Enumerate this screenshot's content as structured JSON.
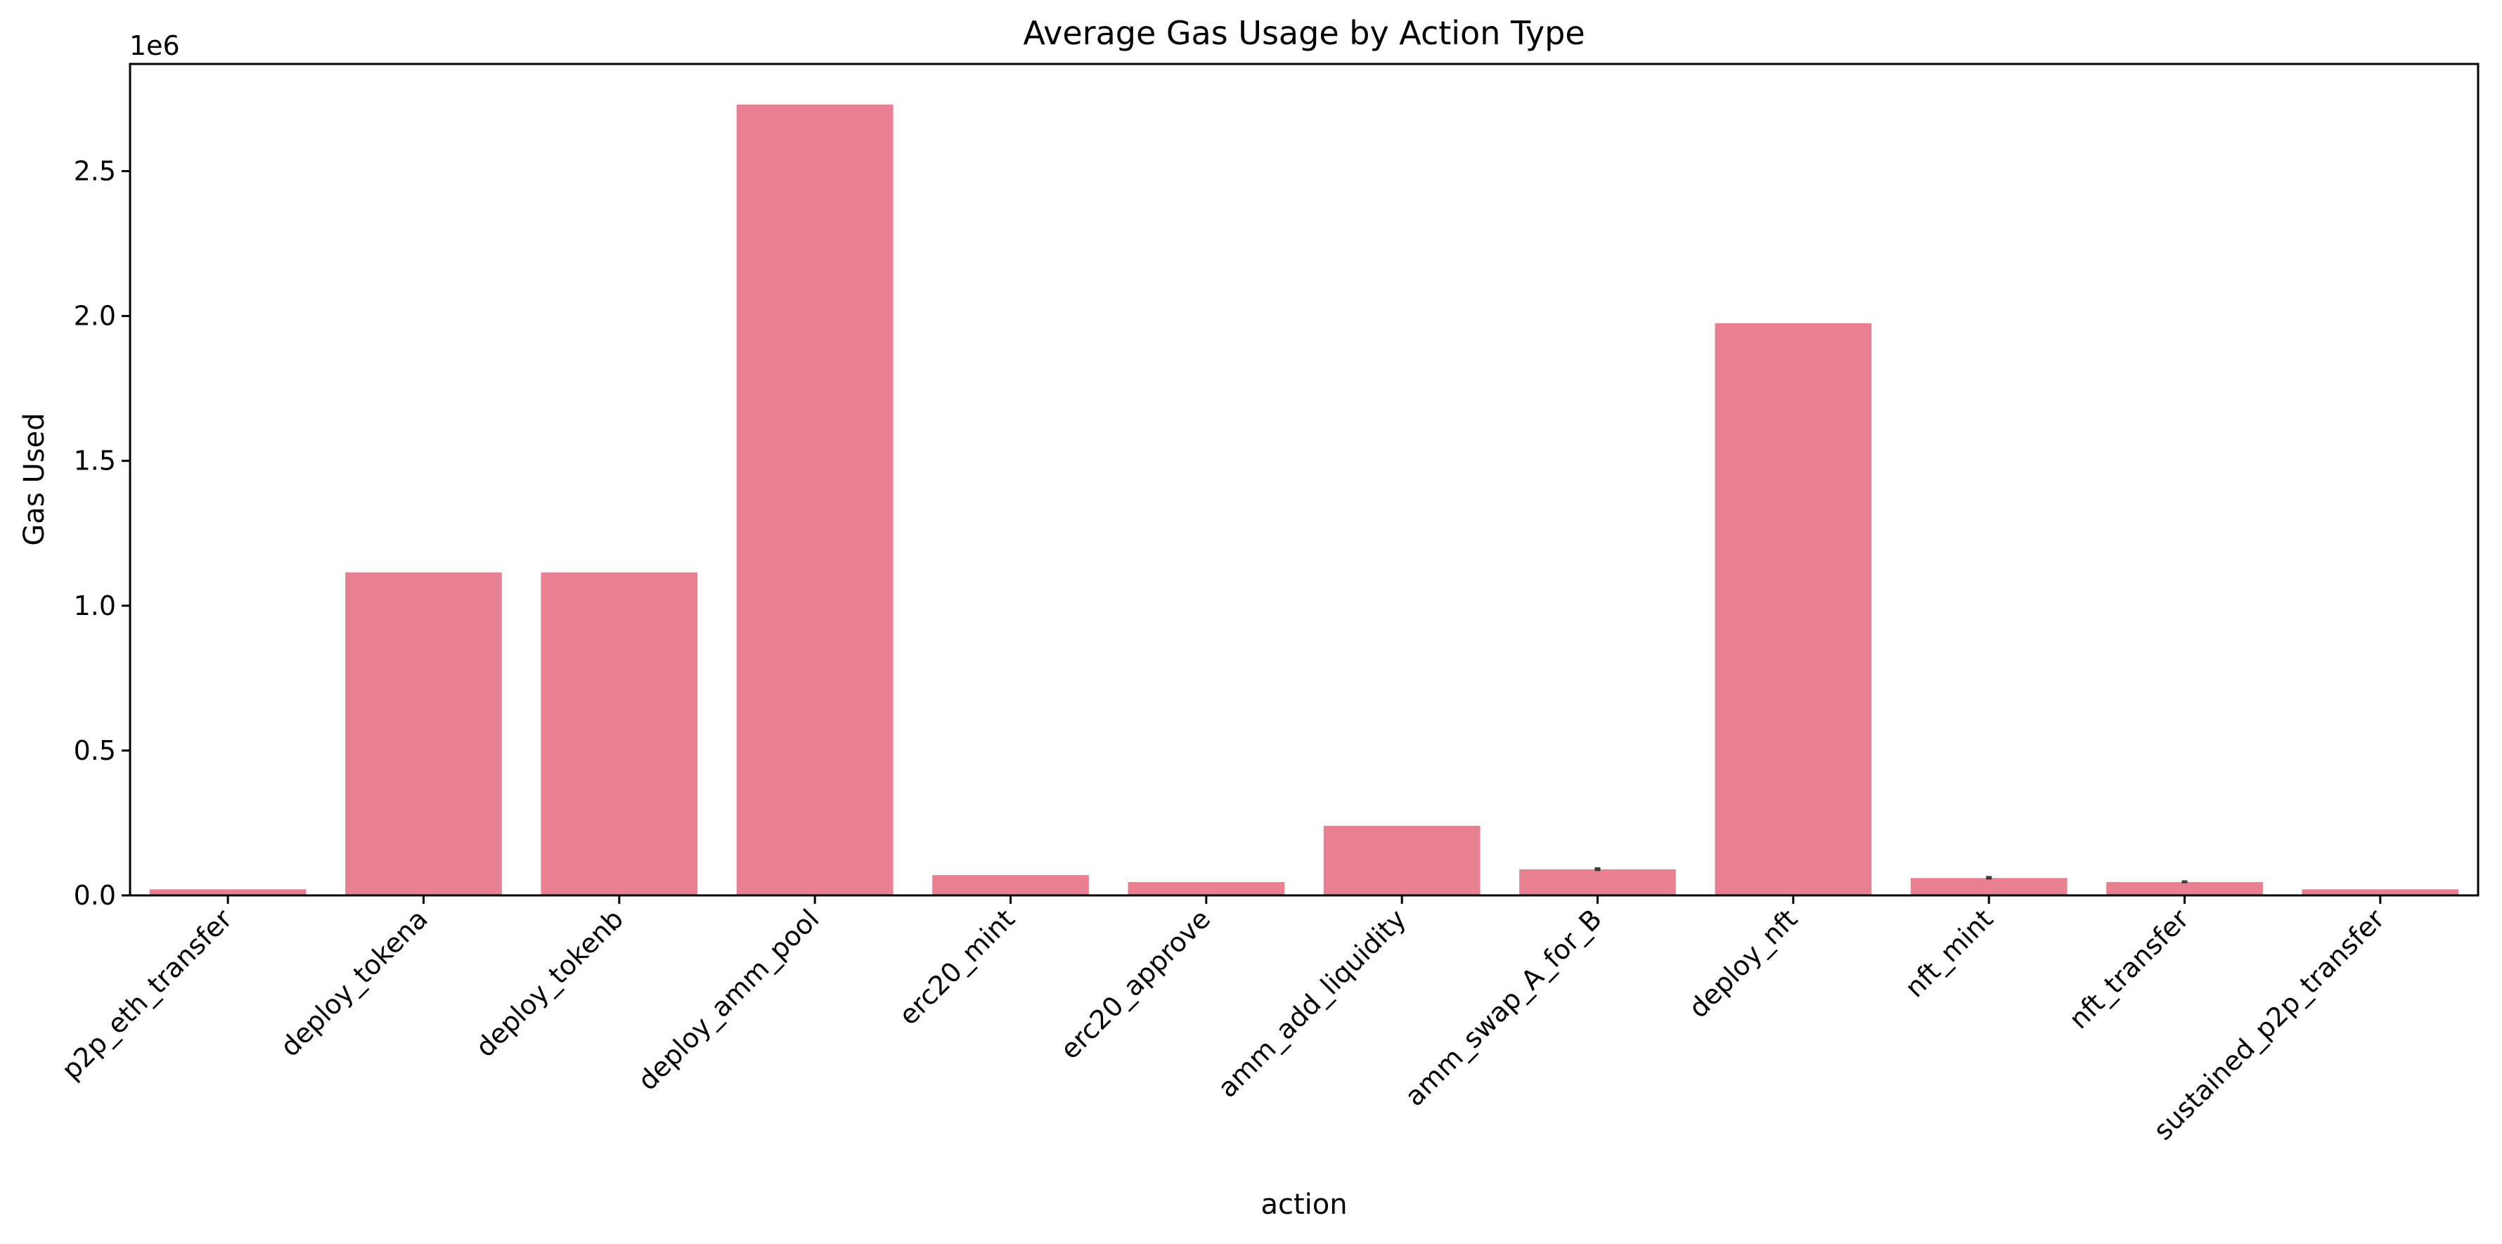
{
  "chart_data": {
    "type": "bar",
    "title": "Average Gas Usage by Action Type",
    "xlabel": "action",
    "ylabel": "Gas Used",
    "y_offset_label": "1e6",
    "ylim": [
      0,
      2870000
    ],
    "yticks": [
      0,
      500000,
      1000000,
      1500000,
      2000000,
      2500000
    ],
    "ytick_labels": [
      "0.0",
      "0.5",
      "1.0",
      "1.5",
      "2.0",
      "2.5"
    ],
    "categories": [
      "p2p_eth_transfer",
      "deploy_tokena",
      "deploy_tokenb",
      "deploy_amm_pool",
      "erc20_mint",
      "erc20_approve",
      "amm_add_liquidity",
      "amm_swap_A_for_B",
      "deploy_nft",
      "nft_mint",
      "nft_transfer",
      "sustained_p2p_transfer"
    ],
    "values": [
      21000,
      1115000,
      1115000,
      2730000,
      70000,
      46000,
      240000,
      90000,
      1975000,
      60000,
      46000,
      21000
    ],
    "error_bars": [
      {
        "category": "amm_swap_A_for_B",
        "low": 84000,
        "high": 97000
      },
      {
        "category": "nft_mint",
        "low": 55000,
        "high": 67000
      },
      {
        "category": "nft_transfer",
        "low": 42000,
        "high": 52000
      }
    ],
    "bar_color": "#e88092",
    "error_color": "#3b3b3b",
    "grid": false,
    "legend": "none"
  }
}
